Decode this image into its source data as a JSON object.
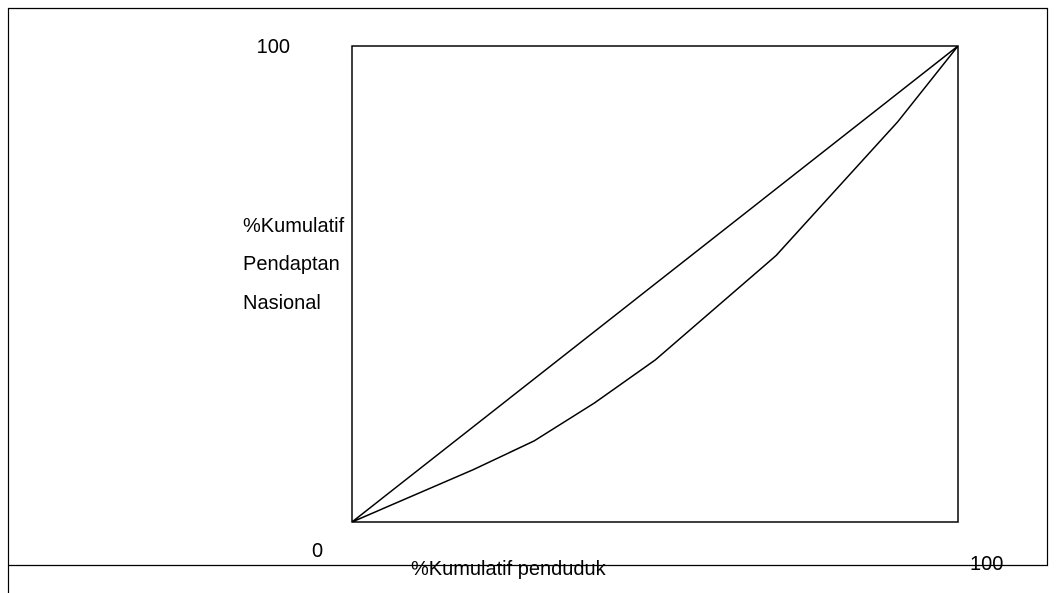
{
  "chart_data": {
    "type": "line",
    "ylabel": [
      "%Kumulatif",
      "Pendaptan",
      "Nasional"
    ],
    "xlabel": "%Kumulatif penduduk",
    "xlim": [
      0,
      100
    ],
    "ylim": [
      0,
      100
    ],
    "xticks": [
      0,
      100
    ],
    "yticks": [
      100
    ],
    "series": [
      {
        "color": "#000000",
        "x": [
          0,
          100
        ],
        "values": [
          0,
          100
        ]
      },
      {
        "color": "#000000",
        "x": [
          0,
          20,
          30,
          40,
          50,
          60,
          70,
          80,
          90,
          100
        ],
        "values": [
          0,
          11,
          17,
          25,
          34,
          45,
          56,
          70,
          84,
          100
        ]
      }
    ]
  }
}
